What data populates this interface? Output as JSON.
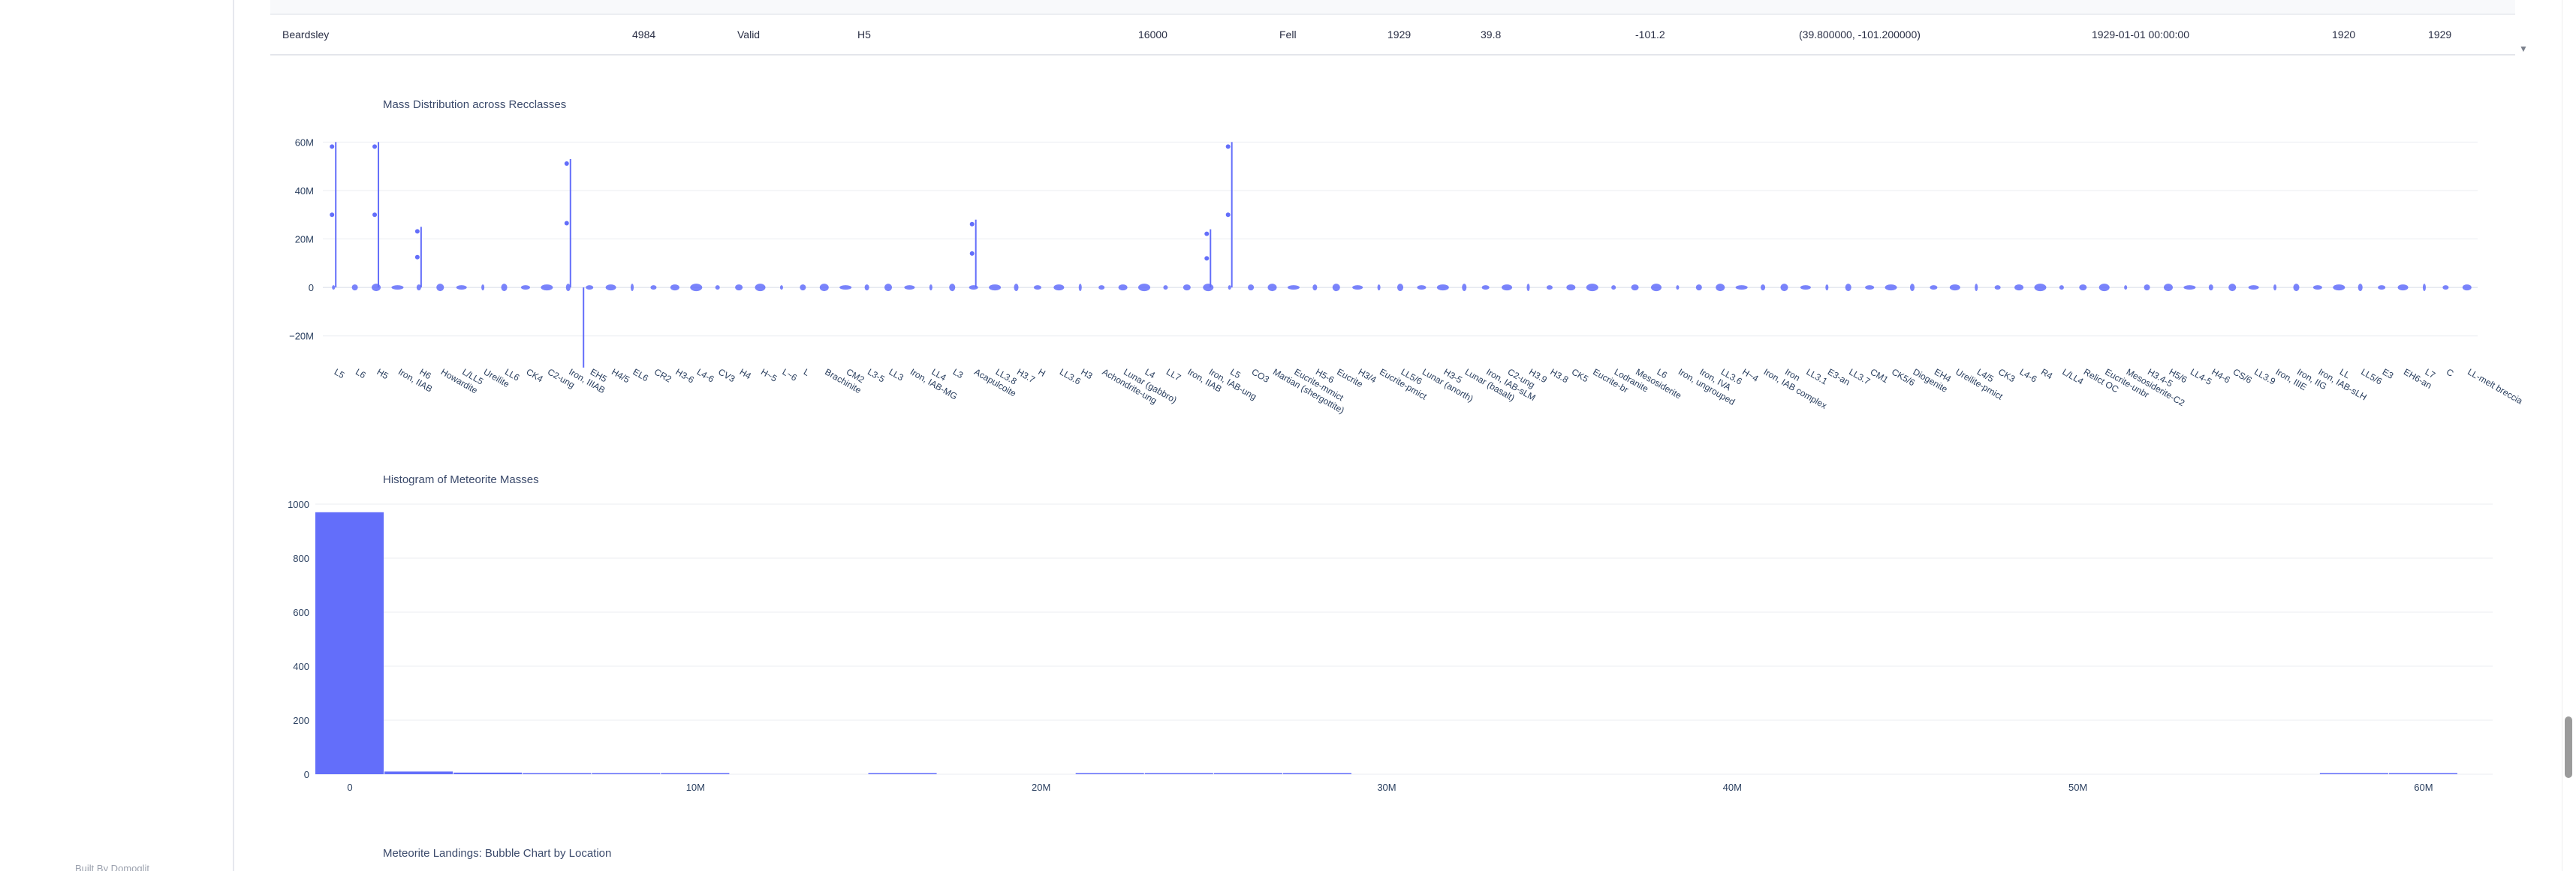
{
  "footer": {
    "built_by": "Built By Domoglit"
  },
  "table": {
    "row": [
      "Beardsley",
      "4984",
      "Valid",
      "H5",
      "16000",
      "Fell",
      "1929",
      "39.8",
      "-101.2",
      "(39.800000, -101.200000)",
      "1929-01-01 00:00:00",
      "1920",
      "1929"
    ],
    "scroll_arrow": "▼"
  },
  "charts": {
    "violin_title": "Mass Distribution across Recclasses",
    "histogram_title": "Histogram of Meteorite Masses",
    "bubble_title": "Meteorite Landings: Bubble Chart by Location"
  },
  "colors": {
    "accent": "#636efa",
    "grid": "#ebedf2",
    "text": "#2a3f5f"
  },
  "chart_data": [
    {
      "type": "violin",
      "title": "Mass Distribution across Recclasses",
      "y_ticks": [
        "60M",
        "40M",
        "20M",
        "0",
        "−20M"
      ],
      "y_tick_values": [
        60000000,
        40000000,
        20000000,
        0,
        -20000000
      ],
      "ylim": [
        -30000000,
        66000000
      ],
      "categories": [
        "L5",
        "L6",
        "H5",
        "Iron, IIAB",
        "H6",
        "Howardite",
        "L/LL5",
        "Ureilite",
        "LL6",
        "CK4",
        "C2-ung",
        "Iron, IIIAB",
        "EH5",
        "H4/5",
        "EL6",
        "CR2",
        "H3-6",
        "L4-6",
        "CV3",
        "H4",
        "H~5",
        "L~6",
        "L",
        "Brachinite",
        "CM2",
        "L3-5",
        "LL3",
        "Iron, IAB-MG",
        "LL4",
        "L3",
        "Acapulcoite",
        "LL3.8",
        "H3.7",
        "H",
        "LL3.6",
        "H3",
        "Achondrite-ung",
        "Lunar (gabbro)",
        "L4",
        "LL7",
        "Iron, IIAB",
        "Iron, IAB-ung",
        "L5",
        "CO3",
        "Martian (shergottite)",
        "Eucrite-mmict",
        "H5-6",
        "Eucrite",
        "H3/4",
        "Eucrite-pmict",
        "LL5/6",
        "Lunar (anorth)",
        "H3-5",
        "Lunar (basalt)",
        "Iron, IAB-sLM",
        "C2-ung",
        "H3.9",
        "H3.8",
        "CK5",
        "Eucrite-br",
        "Lodranite",
        "Mesosiderite",
        "L6",
        "Iron, ungrouped",
        "Iron, IVA",
        "LL3.6",
        "H~4",
        "Iron, IAB complex",
        "Iron",
        "LL3.1",
        "E3-an",
        "LL3.7",
        "CM1",
        "CK5/6",
        "Diogenite",
        "EH4",
        "Ureilite-pmict",
        "L4/5",
        "CK3",
        "L4-6",
        "R4",
        "L/LL4",
        "Relict OC",
        "Eucrite-unbr",
        "Mesosiderite-C2",
        "H3.4-5",
        "H5/6",
        "LL4-5",
        "H4-6",
        "CS/6",
        "LL3.9",
        "Iron, IIIE",
        "Iron, IIG",
        "Iron, IAB-sLH",
        "LL",
        "LL5/6",
        "E3",
        "EH6-an",
        "L7",
        "C",
        "LL-melt breccia"
      ],
      "notable_max_values": [
        {
          "category": "L5",
          "value": 60000000
        },
        {
          "category": "H5",
          "value": 60000000
        },
        {
          "category": "H6",
          "value": 25000000
        },
        {
          "category": "Iron, IIIAB",
          "value": 53000000
        },
        {
          "category": "Acapulcoite",
          "value": 28000000
        },
        {
          "category": "Iron, IAB-ung",
          "value": 24000000
        }
      ]
    },
    {
      "type": "histogram",
      "title": "Histogram of Meteorite Masses",
      "y_ticks": [
        "1000",
        "800",
        "600",
        "400",
        "200",
        "0"
      ],
      "y_tick_values": [
        1000,
        800,
        600,
        400,
        200,
        0
      ],
      "ylim": [
        0,
        1000
      ],
      "x_ticks": [
        "0",
        "10M",
        "20M",
        "30M",
        "40M",
        "50M",
        "60M"
      ],
      "x_tick_values": [
        0,
        10000000,
        20000000,
        30000000,
        40000000,
        50000000,
        60000000
      ],
      "xlim": [
        -1000000,
        62000000
      ],
      "bin_width": 2000000,
      "bins": [
        {
          "x0": -1000000,
          "x1": 1000000,
          "count": 970
        },
        {
          "x0": 1000000,
          "x1": 3000000,
          "count": 10
        },
        {
          "x0": 3000000,
          "x1": 5000000,
          "count": 6
        },
        {
          "x0": 5000000,
          "x1": 7000000,
          "count": 2
        },
        {
          "x0": 7000000,
          "x1": 9000000,
          "count": 2
        },
        {
          "x0": 9000000,
          "x1": 11000000,
          "count": 1
        },
        {
          "x0": 15000000,
          "x1": 17000000,
          "count": 1
        },
        {
          "x0": 21000000,
          "x1": 23000000,
          "count": 2
        },
        {
          "x0": 23000000,
          "x1": 25000000,
          "count": 4
        },
        {
          "x0": 25000000,
          "x1": 27000000,
          "count": 2
        },
        {
          "x0": 27000000,
          "x1": 29000000,
          "count": 1
        },
        {
          "x0": 57000000,
          "x1": 59000000,
          "count": 1
        },
        {
          "x0": 59000000,
          "x1": 61000000,
          "count": 1
        }
      ]
    }
  ]
}
